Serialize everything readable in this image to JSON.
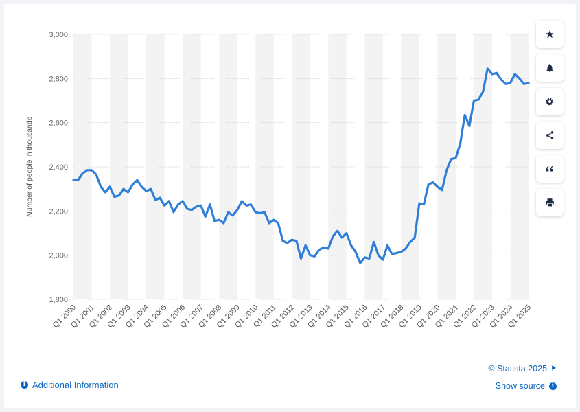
{
  "chart_data": {
    "type": "line",
    "title": "",
    "xlabel": "",
    "ylabel": "Number of people in thousands",
    "ylim": [
      1800,
      3000
    ],
    "yticks": [
      1800,
      2000,
      2200,
      2400,
      2600,
      2800,
      3000
    ],
    "ytick_labels": [
      "1,800",
      "2,000",
      "2,200",
      "2,400",
      "2,600",
      "2,800",
      "3,000"
    ],
    "grid": true,
    "line_color": "#2f7ed8",
    "xtick_labels": [
      "Q1 2000",
      "Q1 2001",
      "Q1 2002",
      "Q1 2003",
      "Q1 2004",
      "Q1 2005",
      "Q1 2006",
      "Q1 2007",
      "Q1 2008",
      "Q1 2009",
      "Q1 2010",
      "Q1 2011",
      "Q1 2012",
      "Q1 2013",
      "Q1 2014",
      "Q1 2015",
      "Q1 2016",
      "Q1 2017",
      "Q1 2018",
      "Q1 2019",
      "Q1 2020",
      "Q1 2021",
      "Q1 2022",
      "Q1 2023",
      "Q1 2024",
      "Q1 2025"
    ],
    "series": [
      {
        "values": [
          2340,
          2340,
          2370,
          2385,
          2385,
          2365,
          2310,
          2285,
          2310,
          2265,
          2270,
          2300,
          2285,
          2320,
          2340,
          2310,
          2290,
          2300,
          2250,
          2260,
          2225,
          2245,
          2195,
          2230,
          2245,
          2210,
          2205,
          2220,
          2225,
          2175,
          2230,
          2155,
          2160,
          2145,
          2195,
          2180,
          2205,
          2245,
          2225,
          2230,
          2195,
          2190,
          2195,
          2145,
          2160,
          2145,
          2065,
          2055,
          2070,
          2065,
          1985,
          2045,
          2000,
          1995,
          2025,
          2035,
          2030,
          2085,
          2110,
          2080,
          2100,
          2045,
          2015,
          1965,
          1990,
          1985,
          2060,
          2000,
          1980,
          2045,
          2005,
          2010,
          2015,
          2030,
          2060,
          2080,
          2235,
          2230,
          2320,
          2330,
          2310,
          2295,
          2385,
          2435,
          2440,
          2505,
          2635,
          2585,
          2700,
          2705,
          2740,
          2845,
          2820,
          2825,
          2795,
          2775,
          2780,
          2820,
          2800,
          2775,
          2780
        ]
      }
    ]
  },
  "footer": {
    "additional_info": "Additional Information",
    "copyright": "© Statista 2025",
    "show_source": "Show source"
  },
  "toolbar": {
    "icons": [
      "star-icon",
      "bell-icon",
      "gear-icon",
      "share-icon",
      "quote-icon",
      "print-icon"
    ]
  },
  "colors": {
    "accent": "#0a66c2",
    "band": "#f3f3f3"
  }
}
